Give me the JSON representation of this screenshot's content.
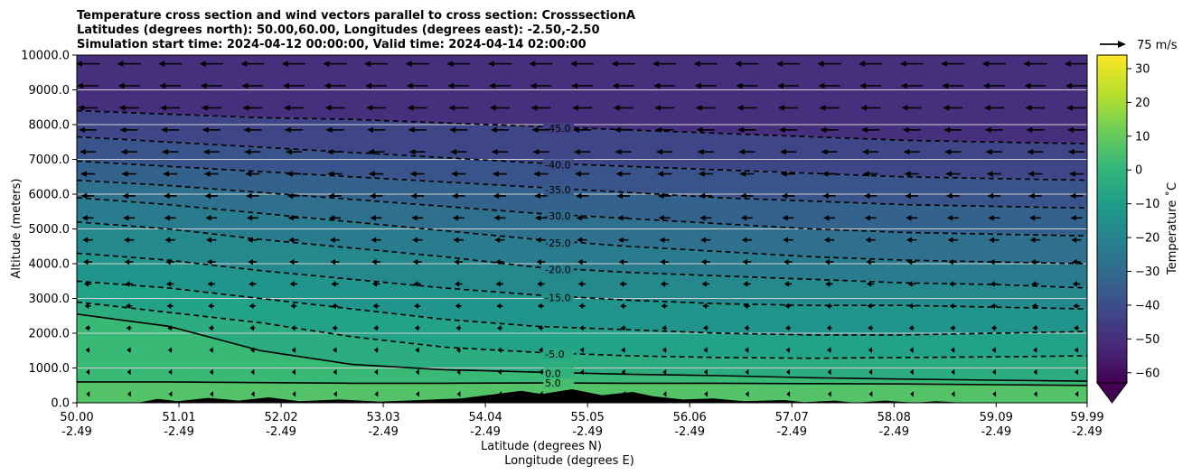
{
  "chart_data": {
    "type": "cross_section_contour",
    "title_lines": [
      "Temperature cross section and wind vectors parallel to cross section: CrosssectionA",
      "Latitudes (degrees north): 50.00,60.00, Longitudes (degrees east): -2.50,-2.50",
      "Simulation start time: 2024-04-12 00:00:00, Valid time: 2024-04-14 02:00:00"
    ],
    "ylabel": "Altitude (meters)",
    "xlabel_line1": "Latitude (degrees N)",
    "xlabel_line2": "Longitude (degrees E)",
    "ylim": [
      0,
      10000
    ],
    "xlim": [
      50.0,
      59.99
    ],
    "y_ticks": [
      "0.0",
      "1000.0",
      "2000.0",
      "3000.0",
      "4000.0",
      "5000.0",
      "6000.0",
      "7000.0",
      "8000.0",
      "9000.0",
      "10000.0"
    ],
    "x_ticks": [
      {
        "lat": "50.00",
        "lon": "-2.49"
      },
      {
        "lat": "51.01",
        "lon": "-2.49"
      },
      {
        "lat": "52.02",
        "lon": "-2.49"
      },
      {
        "lat": "53.03",
        "lon": "-2.49"
      },
      {
        "lat": "54.04",
        "lon": "-2.49"
      },
      {
        "lat": "55.05",
        "lon": "-2.49"
      },
      {
        "lat": "56.06",
        "lon": "-2.49"
      },
      {
        "lat": "57.07",
        "lon": "-2.49"
      },
      {
        "lat": "58.08",
        "lon": "-2.49"
      },
      {
        "lat": "59.09",
        "lon": "-2.49"
      },
      {
        "lat": "59.99",
        "lon": "-2.49"
      }
    ],
    "grid": "horizontal",
    "colorbar": {
      "label": "Temperature ˚C",
      "ticks": [
        "30",
        "20",
        "10",
        "0",
        "−10",
        "−20",
        "−30",
        "−40",
        "−50",
        "−60"
      ],
      "tick_values": [
        30,
        20,
        10,
        0,
        -10,
        -20,
        -30,
        -40,
        -50,
        -60
      ],
      "range": [
        -63,
        34
      ],
      "extend": "min",
      "colormap": [
        "#440154",
        "#482878",
        "#3e4989",
        "#31688e",
        "#26828e",
        "#1f9e89",
        "#35b779",
        "#6ece58",
        "#b5de2b",
        "#fde725"
      ]
    },
    "quiver_key": {
      "label": "75 m/s"
    },
    "contours": [
      {
        "value": 5.0,
        "label": "5.0",
        "style": "solid",
        "alt": [
          600,
          600,
          580,
          560,
          560,
          570,
          560,
          560,
          550,
          540,
          520,
          500
        ]
      },
      {
        "value": 0.0,
        "label": "0.0",
        "style": "solid",
        "alt": [
          2550,
          2200,
          1500,
          1100,
          950,
          880,
          820,
          780,
          720,
          680,
          650,
          620
        ]
      },
      {
        "value": -5.0,
        "label": "-5.0",
        "style": "dashed",
        "alt": [
          2900,
          2600,
          2300,
          1900,
          1600,
          1450,
          1350,
          1300,
          1280,
          1300,
          1320,
          1350
        ]
      },
      {
        "value": -10.0,
        "label": "",
        "style": "dashed",
        "alt": [
          3500,
          3300,
          3000,
          2700,
          2400,
          2200,
          2100,
          2000,
          1950,
          1950,
          2000,
          2050
        ]
      },
      {
        "value": -15.0,
        "label": "-15.0",
        "style": "dashed",
        "alt": [
          4300,
          4100,
          3800,
          3550,
          3300,
          3100,
          2950,
          2850,
          2800,
          2800,
          2750,
          2700
        ]
      },
      {
        "value": -20.0,
        "label": "-20.0",
        "style": "dashed",
        "alt": [
          5200,
          5000,
          4700,
          4450,
          4200,
          3900,
          3750,
          3650,
          3550,
          3450,
          3400,
          3300
        ]
      },
      {
        "value": -25.0,
        "label": "-25.0",
        "style": "dashed",
        "alt": [
          5900,
          5700,
          5450,
          5200,
          4950,
          4700,
          4500,
          4350,
          4200,
          4100,
          4050,
          4000
        ]
      },
      {
        "value": -30.0,
        "label": "-30.0",
        "style": "dashed",
        "alt": [
          6400,
          6250,
          6050,
          5850,
          5650,
          5450,
          5300,
          5150,
          5000,
          4900,
          4850,
          4800
        ]
      },
      {
        "value": -35.0,
        "label": "-35.0",
        "style": "dashed",
        "alt": [
          6950,
          6800,
          6650,
          6500,
          6350,
          6200,
          6050,
          5900,
          5800,
          5700,
          5650,
          5600
        ]
      },
      {
        "value": -40.0,
        "label": "-40.0",
        "style": "dashed",
        "alt": [
          7650,
          7500,
          7350,
          7200,
          7050,
          6900,
          6800,
          6700,
          6600,
          6500,
          6450,
          6400
        ]
      },
      {
        "value": -45.0,
        "label": "-45.0",
        "style": "dashed",
        "alt": [
          8400,
          8300,
          8200,
          8150,
          8050,
          7950,
          7850,
          7750,
          7650,
          7550,
          7500,
          7450
        ]
      }
    ],
    "wind": {
      "direction": "toward decreasing latitude",
      "rows": 16,
      "cols": 25
    }
  }
}
